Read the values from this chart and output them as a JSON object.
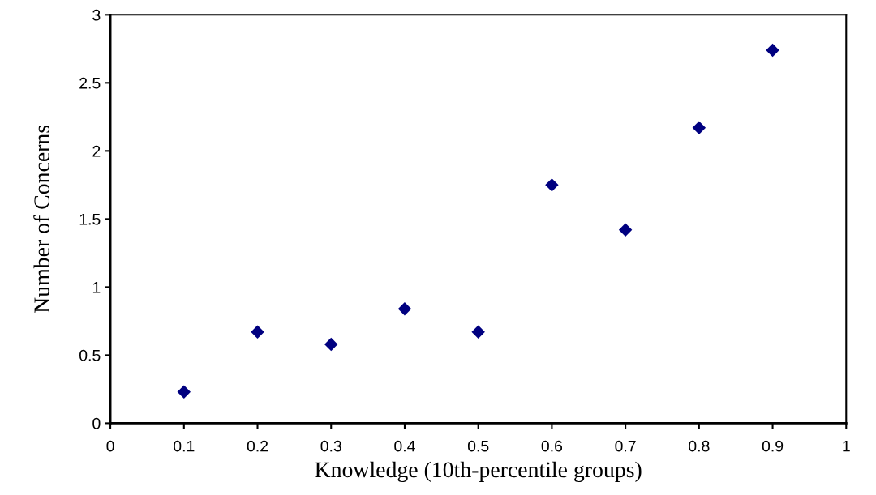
{
  "chart_data": {
    "type": "scatter",
    "xlabel": "Knowledge (10th-percentile groups)",
    "ylabel": "Number of Concerns",
    "x": [
      0.1,
      0.2,
      0.3,
      0.4,
      0.5,
      0.6,
      0.7,
      0.8,
      0.9
    ],
    "series": [
      {
        "color": "#000080",
        "values": [
          0.23,
          0.67,
          0.58,
          0.84,
          0.67,
          1.75,
          1.42,
          2.17,
          2.74
        ]
      }
    ],
    "marker": "diamond",
    "xlim": [
      0,
      1
    ],
    "xticks": [
      0,
      0.1,
      0.2,
      0.3,
      0.4,
      0.5,
      0.6,
      0.7,
      0.8,
      0.9,
      1
    ],
    "ylim": [
      0,
      3
    ],
    "yticks": [
      0,
      0.5,
      1,
      1.5,
      2,
      2.5,
      3
    ],
    "grid": false
  }
}
